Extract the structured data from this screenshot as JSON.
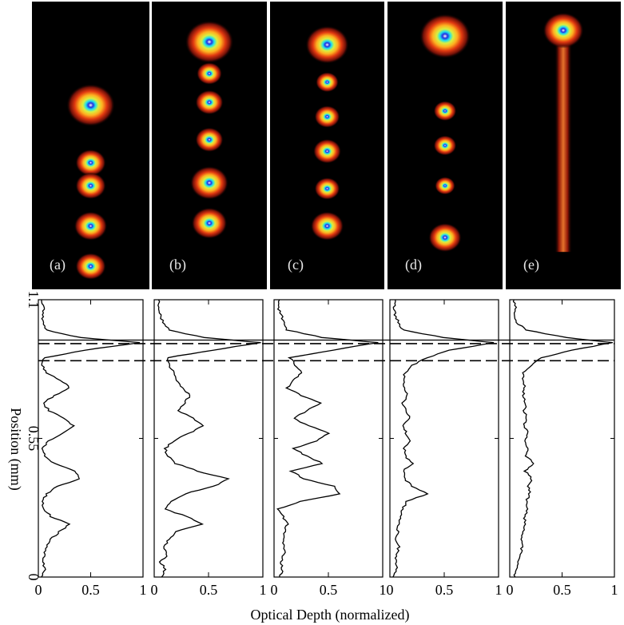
{
  "figure": {
    "ylabel": "Position (mm)",
    "xlabel": "Optical Depth (normalized)"
  },
  "image_panels": [
    {
      "label": "(a)",
      "blobs": [
        [
          0.64,
          1.9
        ],
        [
          0.44,
          1.2
        ],
        [
          0.36,
          1.2
        ],
        [
          0.22,
          1.3
        ],
        [
          0.08,
          1.2
        ]
      ]
    },
    {
      "label": "(b)",
      "blobs": [
        [
          0.86,
          1.9
        ],
        [
          0.75,
          1.0
        ],
        [
          0.65,
          1.1
        ],
        [
          0.52,
          1.1
        ],
        [
          0.37,
          1.5
        ],
        [
          0.23,
          1.4
        ]
      ]
    },
    {
      "label": "(c)",
      "blobs": [
        [
          0.85,
          1.7
        ],
        [
          0.72,
          0.9
        ],
        [
          0.6,
          1.0
        ],
        [
          0.48,
          1.1
        ],
        [
          0.35,
          1.0
        ],
        [
          0.22,
          1.3
        ]
      ]
    },
    {
      "label": "(d)",
      "blobs": [
        [
          0.88,
          2.0
        ],
        [
          0.62,
          0.9
        ],
        [
          0.5,
          0.9
        ],
        [
          0.36,
          0.8
        ],
        [
          0.18,
          1.3
        ]
      ]
    },
    {
      "label": "(e)",
      "blobs": [
        [
          0.9,
          1.6
        ]
      ],
      "streak": true
    }
  ],
  "chart_data": {
    "type": "line",
    "xlabel": "Optical Depth (normalized)",
    "ylabel": "Position (mm)",
    "xlim": [
      0,
      1
    ],
    "ylim": [
      0,
      1.1
    ],
    "xticks": [
      0,
      0.5,
      1
    ],
    "xtick_labels": [
      "0",
      "0.5",
      "1"
    ],
    "yticks": [
      0,
      0.55,
      1.1
    ],
    "ytick_labels": [
      "0",
      "0.55",
      "1.1"
    ],
    "reference_lines": [
      {
        "y": 0.94,
        "style": "solid"
      },
      {
        "y": 0.926,
        "style": "dashed"
      },
      {
        "y": 0.858,
        "style": "dashed"
      }
    ],
    "panels": [
      {
        "label": "(a)",
        "baseline": 0.02,
        "y": [
          0,
          0.03,
          0.06,
          0.09,
          0.12,
          0.15,
          0.18,
          0.21,
          0.24,
          0.27,
          0.3,
          0.33,
          0.36,
          0.39,
          0.42,
          0.45,
          0.48,
          0.51,
          0.54,
          0.57,
          0.6,
          0.63,
          0.66,
          0.69,
          0.72,
          0.75,
          0.78,
          0.81,
          0.84,
          0.87,
          0.9,
          0.93,
          0.95,
          0.98,
          1.01,
          1.04,
          1.07,
          1.1
        ],
        "x": [
          0.03,
          0.07,
          0.04,
          0.06,
          0.08,
          0.12,
          0.2,
          0.3,
          0.12,
          0.05,
          0.04,
          0.08,
          0.18,
          0.4,
          0.36,
          0.15,
          0.06,
          0.04,
          0.1,
          0.22,
          0.34,
          0.25,
          0.1,
          0.05,
          0.15,
          0.3,
          0.22,
          0.07,
          0.04,
          0.06,
          0.45,
          0.98,
          0.4,
          0.08,
          0.05,
          0.04,
          0.05,
          0.03
        ]
      },
      {
        "label": "(b)",
        "baseline": 0.05,
        "y": [
          0,
          0.03,
          0.06,
          0.09,
          0.12,
          0.15,
          0.18,
          0.21,
          0.24,
          0.27,
          0.3,
          0.33,
          0.36,
          0.39,
          0.42,
          0.45,
          0.48,
          0.51,
          0.54,
          0.57,
          0.6,
          0.63,
          0.66,
          0.69,
          0.72,
          0.75,
          0.78,
          0.81,
          0.84,
          0.87,
          0.9,
          0.93,
          0.95,
          0.98,
          1.01,
          1.04,
          1.07,
          1.1
        ],
        "x": [
          0.08,
          0.1,
          0.06,
          0.12,
          0.09,
          0.14,
          0.2,
          0.45,
          0.3,
          0.1,
          0.15,
          0.28,
          0.55,
          0.68,
          0.4,
          0.2,
          0.12,
          0.1,
          0.18,
          0.32,
          0.45,
          0.35,
          0.22,
          0.28,
          0.33,
          0.26,
          0.2,
          0.18,
          0.14,
          0.12,
          0.55,
          0.97,
          0.45,
          0.14,
          0.08,
          0.06,
          0.05,
          0.04
        ]
      },
      {
        "label": "(c)",
        "baseline": 0.03,
        "y": [
          0,
          0.03,
          0.06,
          0.09,
          0.12,
          0.15,
          0.18,
          0.21,
          0.24,
          0.27,
          0.3,
          0.33,
          0.36,
          0.39,
          0.42,
          0.45,
          0.48,
          0.51,
          0.54,
          0.57,
          0.6,
          0.63,
          0.66,
          0.69,
          0.72,
          0.75,
          0.78,
          0.81,
          0.84,
          0.87,
          0.9,
          0.93,
          0.95,
          0.98,
          1.01,
          1.04,
          1.07,
          1.1
        ],
        "x": [
          0.05,
          0.08,
          0.06,
          0.09,
          0.1,
          0.08,
          0.1,
          0.12,
          0.08,
          0.03,
          0.25,
          0.6,
          0.55,
          0.28,
          0.15,
          0.45,
          0.3,
          0.18,
          0.4,
          0.5,
          0.32,
          0.18,
          0.3,
          0.42,
          0.25,
          0.12,
          0.18,
          0.25,
          0.2,
          0.15,
          0.55,
          0.95,
          0.45,
          0.12,
          0.1,
          0.06,
          0.04,
          0.05
        ]
      },
      {
        "label": "(d)",
        "baseline": 0.02,
        "y": [
          0,
          0.03,
          0.06,
          0.09,
          0.12,
          0.15,
          0.18,
          0.21,
          0.24,
          0.27,
          0.3,
          0.33,
          0.36,
          0.39,
          0.42,
          0.45,
          0.48,
          0.51,
          0.54,
          0.57,
          0.6,
          0.63,
          0.66,
          0.69,
          0.72,
          0.75,
          0.78,
          0.81,
          0.84,
          0.87,
          0.9,
          0.93,
          0.95,
          0.98,
          1.01,
          1.04,
          1.07,
          1.1
        ],
        "x": [
          0.04,
          0.06,
          0.05,
          0.07,
          0.08,
          0.06,
          0.07,
          0.08,
          0.1,
          0.12,
          0.15,
          0.35,
          0.2,
          0.14,
          0.12,
          0.22,
          0.14,
          0.13,
          0.18,
          0.15,
          0.12,
          0.18,
          0.14,
          0.12,
          0.16,
          0.13,
          0.12,
          0.14,
          0.2,
          0.35,
          0.55,
          0.95,
          0.5,
          0.12,
          0.08,
          0.05,
          0.04,
          0.05
        ]
      },
      {
        "label": "(e)",
        "baseline": 0.03,
        "y": [
          0,
          0.03,
          0.06,
          0.09,
          0.12,
          0.15,
          0.18,
          0.21,
          0.24,
          0.27,
          0.3,
          0.33,
          0.36,
          0.39,
          0.42,
          0.45,
          0.48,
          0.51,
          0.54,
          0.57,
          0.6,
          0.63,
          0.66,
          0.69,
          0.72,
          0.75,
          0.78,
          0.81,
          0.84,
          0.87,
          0.9,
          0.93,
          0.95,
          0.98,
          1.01,
          1.04,
          1.07,
          1.1
        ],
        "x": [
          0.05,
          0.06,
          0.08,
          0.1,
          0.12,
          0.11,
          0.13,
          0.15,
          0.14,
          0.17,
          0.16,
          0.19,
          0.18,
          0.21,
          0.15,
          0.23,
          0.16,
          0.18,
          0.15,
          0.17,
          0.14,
          0.16,
          0.14,
          0.15,
          0.13,
          0.14,
          0.13,
          0.12,
          0.2,
          0.3,
          0.6,
          0.98,
          0.55,
          0.15,
          0.07,
          0.05,
          0.06,
          0.04
        ]
      }
    ]
  }
}
